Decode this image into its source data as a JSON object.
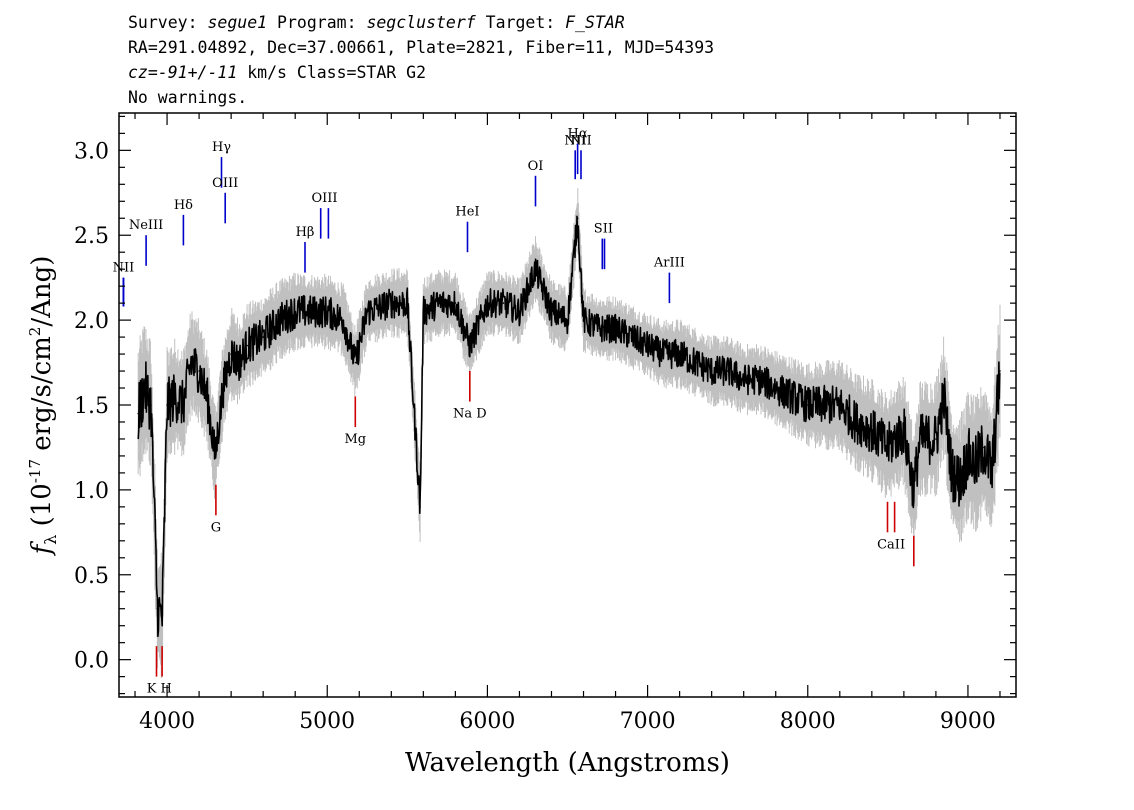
{
  "header": {
    "line1": [
      {
        "text": "Survey: ",
        "italic": false
      },
      {
        "text": "segue1",
        "italic": true
      },
      {
        "text": " Program: ",
        "italic": false
      },
      {
        "text": "segclusterf",
        "italic": true
      },
      {
        "text": " Target: ",
        "italic": false
      },
      {
        "text": "F_STAR",
        "italic": true
      }
    ],
    "line2": "RA=291.04892, Dec=37.00661, Plate=2821, Fiber=11, MJD=54393",
    "line3": [
      {
        "text": "cz=-91+/-11",
        "italic": true
      },
      {
        "text": " km/s Class=STAR G2",
        "italic": false
      }
    ],
    "line4": "No warnings."
  },
  "chart_data": {
    "type": "line",
    "xlabel": "Wavelength (Angstroms)",
    "ylabel": "f_λ (10^-17 erg/s/cm^2/Ang)",
    "ylabel_parts": {
      "prefix": "(10",
      "exp": "-17",
      "mid": " erg/s/cm",
      "exp2": "2",
      "suffix": "/Ang)"
    },
    "xlim": [
      3700,
      9300
    ],
    "ylim": [
      -0.22,
      3.22
    ],
    "xticks": [
      4000,
      5000,
      6000,
      7000,
      8000,
      9000
    ],
    "xtick_labels": [
      "4000",
      "5000",
      "6000",
      "7000",
      "8000",
      "9000"
    ],
    "yticks": [
      0.0,
      0.5,
      1.0,
      1.5,
      2.0,
      2.5,
      3.0
    ],
    "ytick_labels": [
      "0.0",
      "0.5",
      "1.0",
      "1.5",
      "2.0",
      "2.5",
      "3.0"
    ],
    "series": [
      {
        "role": "flux",
        "color": "#000000",
        "x": [
          3820,
          3860,
          3900,
          3940,
          3970,
          4000,
          4050,
          4100,
          4150,
          4200,
          4250,
          4300,
          4350,
          4400,
          4450,
          4500,
          4600,
          4700,
          4800,
          4900,
          5000,
          5100,
          5175,
          5250,
          5400,
          5500,
          5580,
          5600,
          5700,
          5800,
          5890,
          6000,
          6100,
          6200,
          6300,
          6400,
          6500,
          6563,
          6600,
          6700,
          6800,
          6900,
          7000,
          7100,
          7200,
          7300,
          7400,
          7500,
          7600,
          7700,
          7800,
          7900,
          8000,
          8100,
          8200,
          8300,
          8400,
          8498,
          8542,
          8600,
          8662,
          8700,
          8800,
          8850,
          8900,
          8950,
          9000,
          9050,
          9100,
          9150,
          9200
        ],
        "y": [
          1.45,
          1.6,
          1.5,
          0.3,
          0.25,
          1.5,
          1.55,
          1.5,
          1.75,
          1.7,
          1.55,
          1.2,
          1.6,
          1.8,
          1.75,
          1.85,
          1.9,
          2.0,
          2.05,
          2.05,
          2.05,
          2.0,
          1.75,
          2.05,
          2.1,
          2.1,
          0.9,
          2.05,
          2.1,
          2.1,
          1.85,
          2.1,
          2.1,
          2.05,
          2.3,
          2.05,
          2.0,
          2.6,
          2.0,
          1.95,
          1.95,
          1.9,
          1.85,
          1.8,
          1.8,
          1.75,
          1.7,
          1.7,
          1.65,
          1.65,
          1.6,
          1.55,
          1.5,
          1.5,
          1.5,
          1.4,
          1.35,
          1.25,
          1.3,
          1.35,
          1.0,
          1.3,
          1.3,
          1.55,
          1.1,
          1.05,
          1.2,
          1.15,
          1.25,
          1.1,
          1.7
        ]
      },
      {
        "role": "error",
        "color": "#c0c0c0",
        "x": [
          3820,
          3900,
          4000,
          4100,
          4200,
          4300,
          4400,
          4500,
          4600,
          4700,
          4800,
          4900,
          5000,
          5200,
          5400,
          5600,
          5800,
          6000,
          6200,
          6400,
          6600,
          6800,
          7000,
          7200,
          7400,
          7600,
          7800,
          8000,
          8200,
          8400,
          8600,
          8800,
          9000,
          9200
        ],
        "y": [
          0.3,
          0.28,
          0.26,
          0.24,
          0.22,
          0.2,
          0.2,
          0.18,
          0.18,
          0.17,
          0.17,
          0.16,
          0.16,
          0.15,
          0.15,
          0.15,
          0.14,
          0.14,
          0.14,
          0.14,
          0.14,
          0.14,
          0.14,
          0.15,
          0.15,
          0.15,
          0.16,
          0.18,
          0.2,
          0.22,
          0.24,
          0.26,
          0.28,
          0.3
        ]
      }
    ],
    "emission_lines": [
      {
        "label": "NII",
        "x": [
          3727,
          3729
        ],
        "y0": 2.08,
        "y1": 2.25,
        "color": "#0000cc"
      },
      {
        "label": "NeIII",
        "x": [
          3869
        ],
        "y0": 2.32,
        "y1": 2.5,
        "color": "#0000cc"
      },
      {
        "label": "Hδ",
        "x": [
          4102
        ],
        "y0": 2.44,
        "y1": 2.62,
        "color": "#0000cc"
      },
      {
        "label": "Hγ",
        "x": [
          4340
        ],
        "y0": 2.78,
        "y1": 2.96,
        "color": "#0000cc"
      },
      {
        "label": "OIII",
        "x": [
          4363
        ],
        "y0": 2.57,
        "y1": 2.75,
        "color": "#0000cc"
      },
      {
        "label": "Hβ",
        "x": [
          4861
        ],
        "y0": 2.28,
        "y1": 2.46,
        "color": "#0000cc"
      },
      {
        "label": "OIII",
        "x": [
          4959,
          5007
        ],
        "y0": 2.48,
        "y1": 2.66,
        "color": "#0000cc"
      },
      {
        "label": "HeI",
        "x": [
          5876
        ],
        "y0": 2.4,
        "y1": 2.58,
        "color": "#0000cc"
      },
      {
        "label": "OI",
        "x": [
          6300
        ],
        "y0": 2.67,
        "y1": 2.85,
        "color": "#0000cc"
      },
      {
        "label": "NII",
        "x": [
          6548
        ],
        "y0": 2.83,
        "y1": 3.0,
        "color": "#0000cc"
      },
      {
        "label": "Hα",
        "x": [
          6563
        ],
        "y0": 2.86,
        "y1": 3.04,
        "color": "#0000cc"
      },
      {
        "label": "NII",
        "x": [
          6584
        ],
        "y0": 2.83,
        "y1": 3.0,
        "color": "#0000cc"
      },
      {
        "label": "SII",
        "x": [
          6717,
          6731
        ],
        "y0": 2.3,
        "y1": 2.48,
        "color": "#0000cc"
      },
      {
        "label": "ArIII",
        "x": [
          7136
        ],
        "y0": 2.1,
        "y1": 2.28,
        "color": "#0000cc"
      }
    ],
    "absorption_lines": [
      {
        "label": "K H",
        "x": [
          3934,
          3969
        ],
        "y0": -0.1,
        "y1": 0.08,
        "color": "#cc0000"
      },
      {
        "label": "G",
        "x": [
          4305
        ],
        "y0": 0.85,
        "y1": 1.03,
        "color": "#cc0000"
      },
      {
        "label": "Mg",
        "x": [
          5175
        ],
        "y0": 1.37,
        "y1": 1.55,
        "color": "#cc0000"
      },
      {
        "label": "Na D",
        "x": [
          5890
        ],
        "y0": 1.52,
        "y1": 1.7,
        "color": "#cc0000"
      },
      {
        "label": "CaII",
        "x": [
          8498,
          8542
        ],
        "y0": 0.75,
        "y1": 0.93,
        "color": "#cc0000"
      },
      {
        "label": "",
        "x": [
          8662
        ],
        "y0": 0.55,
        "y1": 0.73,
        "color": "#cc0000"
      }
    ],
    "grid": false,
    "legend": "none"
  }
}
